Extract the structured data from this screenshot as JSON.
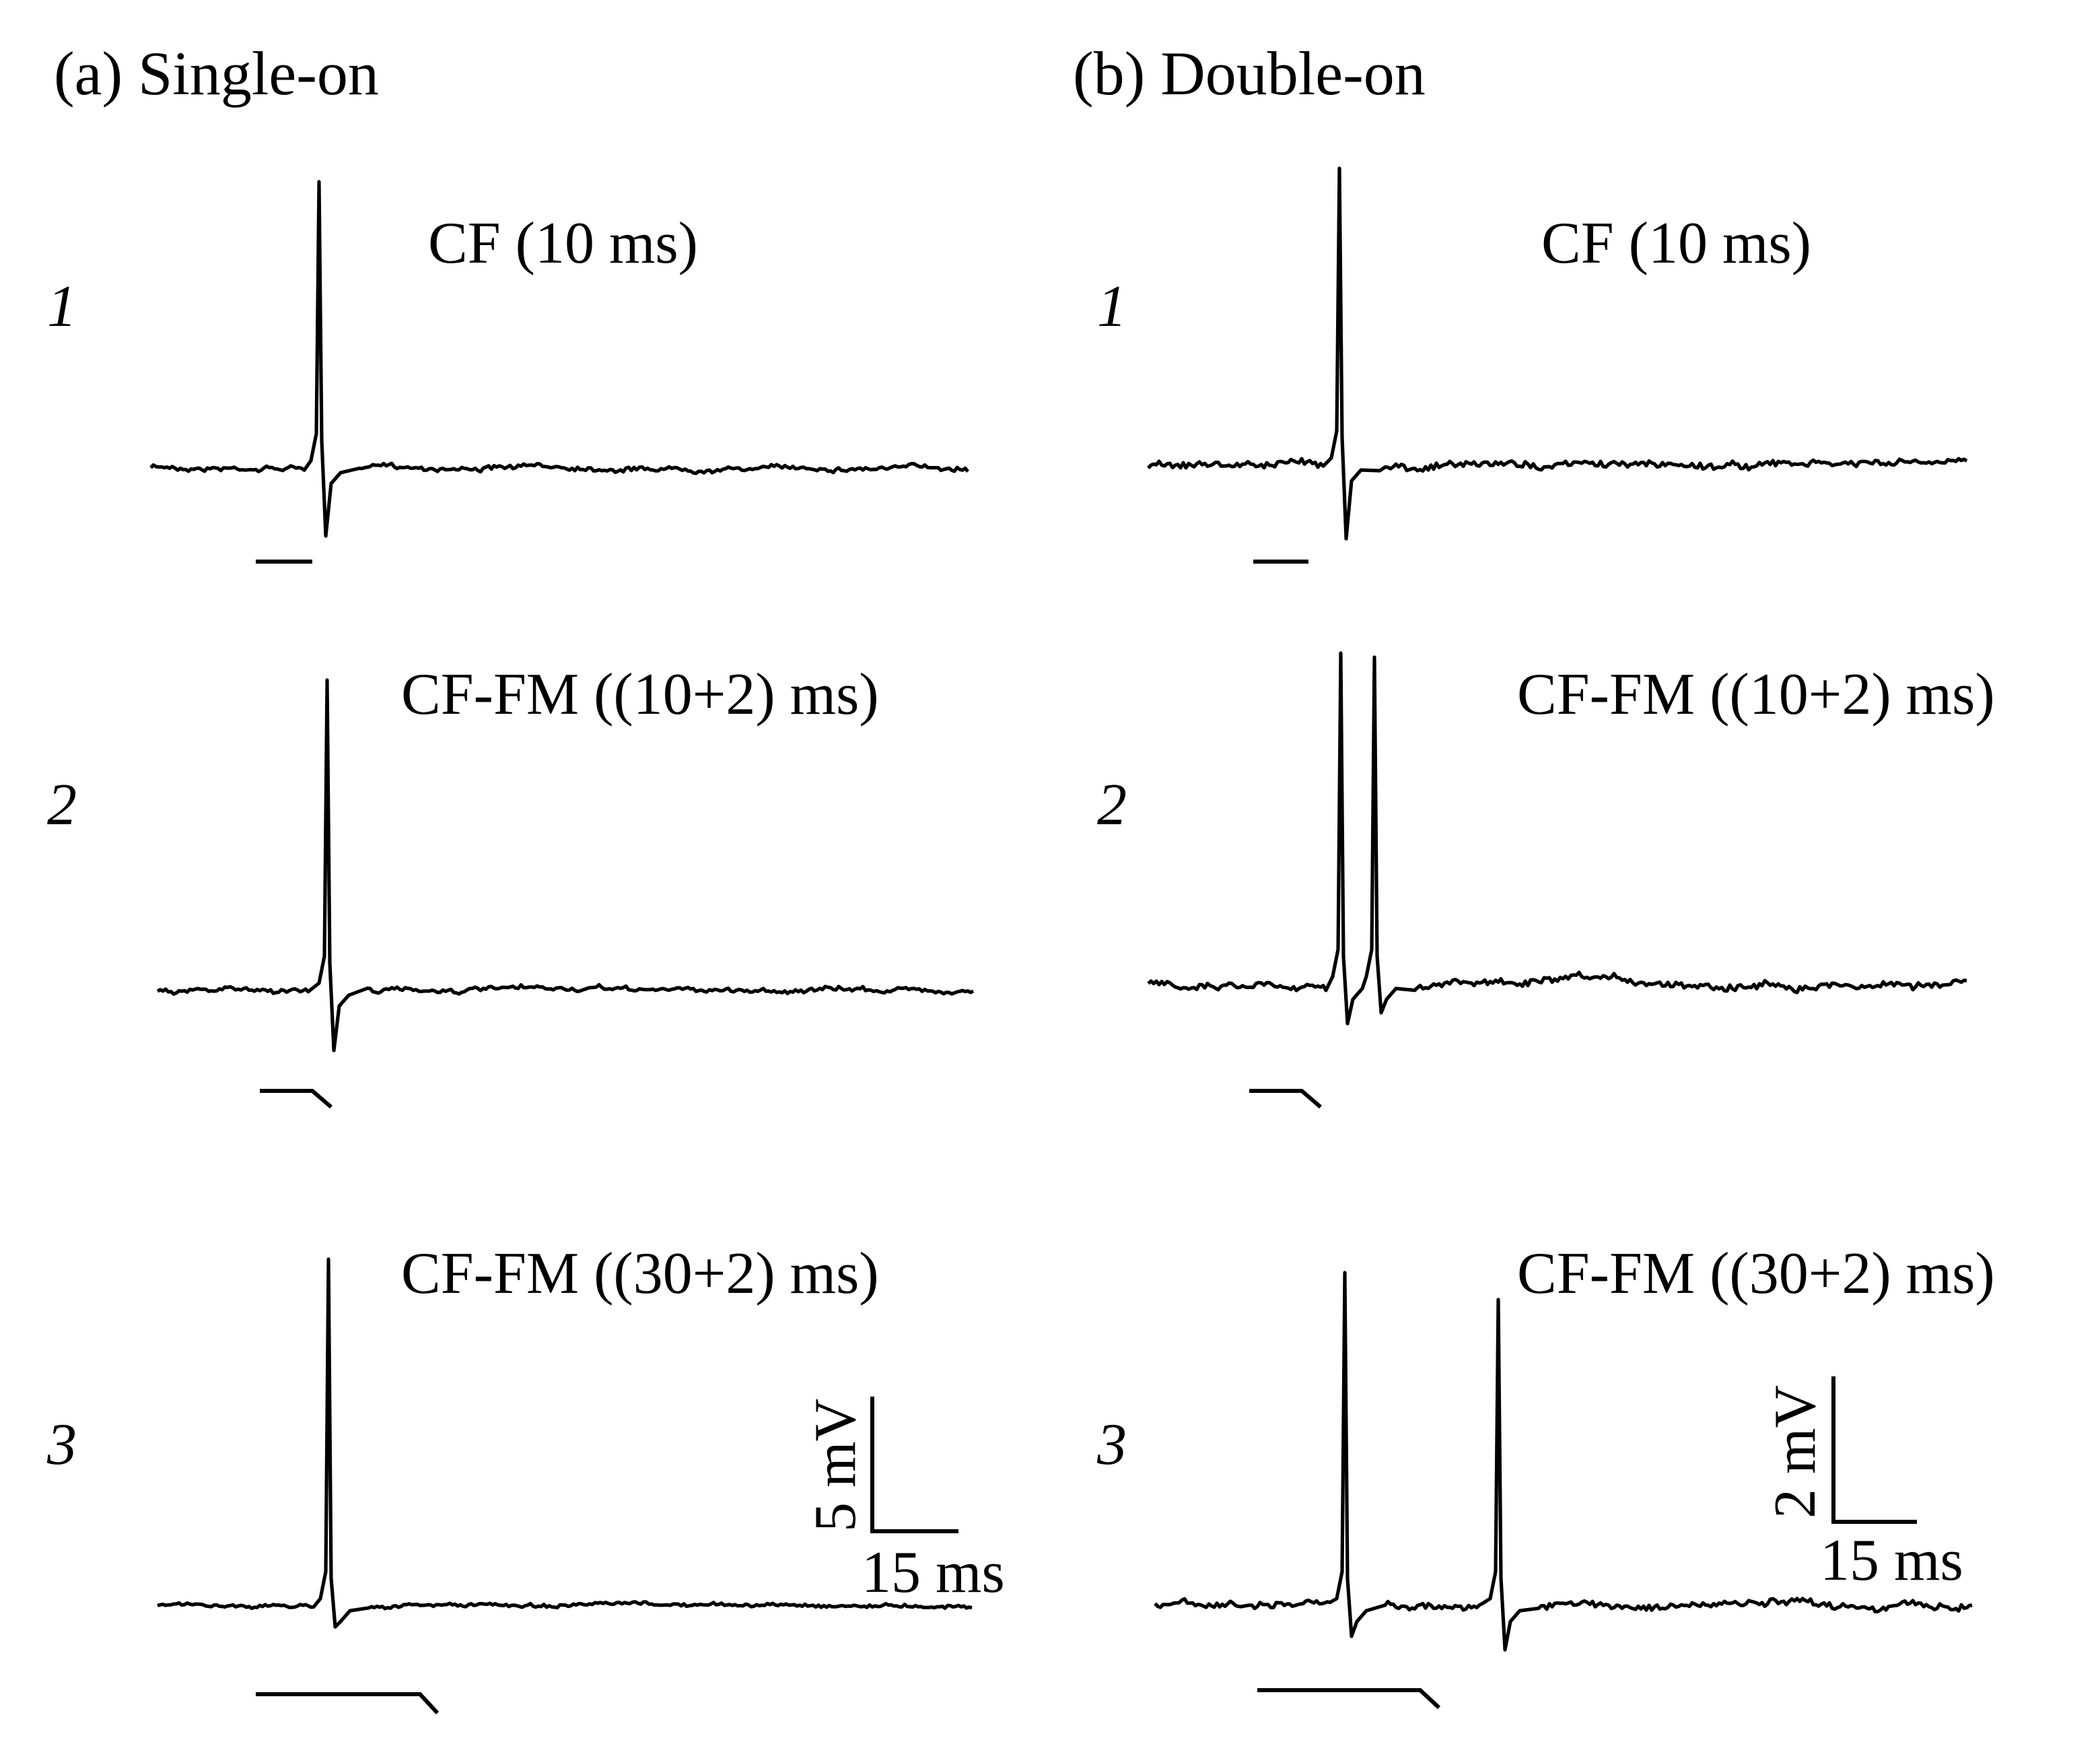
{
  "panels": [
    {
      "title": "(a) Single-on",
      "rows": [
        {
          "label": "1",
          "stimulus": "CF (10 ms)"
        },
        {
          "label": "2",
          "stimulus": "CF-FM ((10+2) ms)"
        },
        {
          "label": "3",
          "stimulus": "CF-FM ((30+2) ms)"
        }
      ],
      "scale_bar": {
        "vertical": "5 mV",
        "horizontal": "15 ms"
      }
    },
    {
      "title": "(b) Double-on",
      "rows": [
        {
          "label": "1",
          "stimulus": "CF (10 ms)"
        },
        {
          "label": "2",
          "stimulus": "CF-FM ((10+2) ms)"
        },
        {
          "label": "3",
          "stimulus": "CF-FM ((30+2) ms)"
        }
      ],
      "scale_bar": {
        "vertical": "2 mV",
        "horizontal": "15 ms"
      }
    }
  ]
}
